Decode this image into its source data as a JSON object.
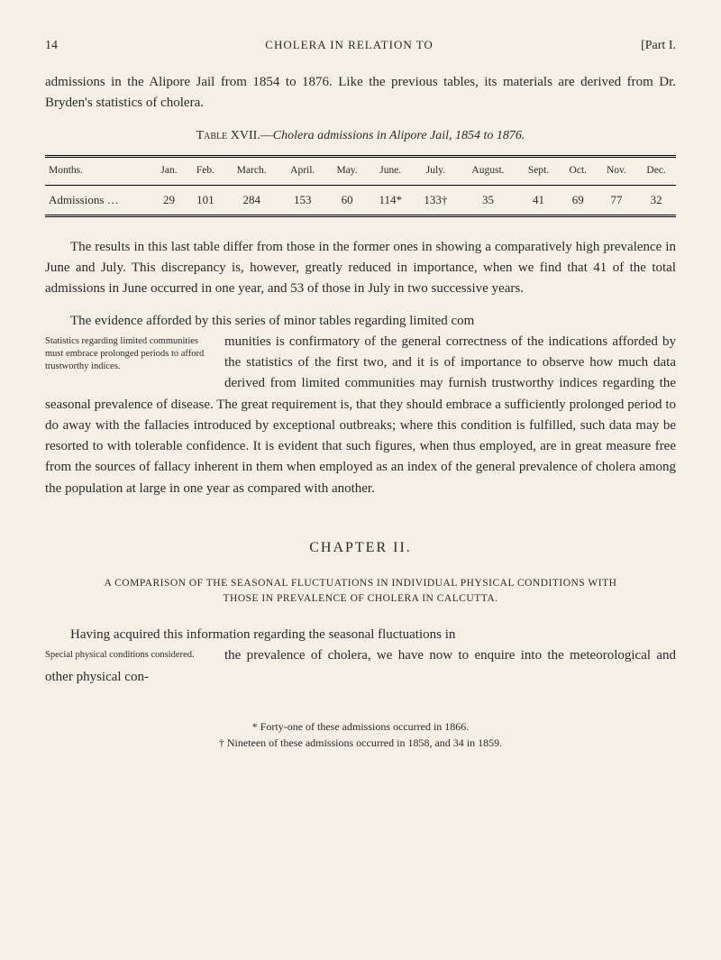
{
  "header": {
    "page_number": "14",
    "running_head": "CHOLERA IN RELATION TO",
    "part_label": "[Part I."
  },
  "intro_para": "admissions in the Alipore Jail from 1854 to 1876.  Like the previous tables, its materials are derived from Dr. Bryden's statistics of cholera.",
  "table_caption_prefix": "Table XVII.—",
  "table_caption_italic": "Cholera admissions in Alipore Jail, 1854 to 1876.",
  "table": {
    "columns": [
      "Months.",
      "Jan.",
      "Feb.",
      "March.",
      "April.",
      "May.",
      "June.",
      "July.",
      "August.",
      "Sept.",
      "Oct.",
      "Nov.",
      "Dec."
    ],
    "row_label": "Admissions          …",
    "row_values": [
      "29",
      "101",
      "284",
      "153",
      "60",
      "114*",
      "133†",
      "35",
      "41",
      "69",
      "77",
      "32"
    ]
  },
  "para2": "The results in this last table differ from those in the former ones in showing a comparatively high prevalence in June and July.  This discrepancy is, however, greatly reduced in importance, when we find that 41 of the total admissions in June occurred in one year, and 53 of those in July in two successive years.",
  "para3_lead": "The evidence afforded by this series of minor tables regarding limited com",
  "margin_note_1": "Statistics regarding limited communities must embrace prolonged periods to afford trustworthy indices.",
  "para3_body": "munities is confirmatory of the general correctness of the indications afforded by the statistics of the first two, and it is of importance to observe how much data derived from limited communities may furnish trustworthy indices regarding the seasonal prevalence of disease.  The great requirement is, that they should embrace a sufficiently prolonged period to do away with the fallacies introduced by exceptional outbreaks; where this condition is fulfilled, such data may be resorted to with tolerable confidence.  It is evident that such figures, when thus employed, are in great measure free from the sources of fallacy inherent in them when employed as an index of the general prevalence of cholera among the population at large in one year as compared with another.",
  "chapter_head": "CHAPTER II.",
  "sub_head": "A COMPARISON OF THE SEASONAL FLUCTUATIONS IN INDIVIDUAL PHYSICAL CONDITIONS WITH THOSE IN PREVALENCE OF CHOLERA IN CALCUTTA.",
  "para4_lead": "Having acquired this information regarding the seasonal fluctuations in",
  "margin_note_2": "Special physical conditions considered.",
  "para4_body": " the prevalence of cholera, we have now to enquire into the meteorological and other physical con-",
  "footnotes": {
    "a": "* Forty-one of these admissions occurred in 1866.",
    "b": "† Nineteen of these admissions occurred in 1858, and 34 in 1859."
  }
}
